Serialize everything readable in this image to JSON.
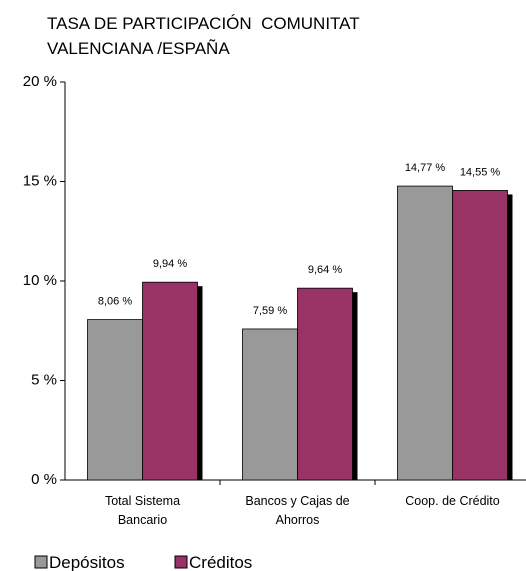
{
  "chart_data": {
    "type": "bar",
    "title": "TASA DE PARTICIPACIÓN  COMUNITAT VALENCIANA /ESPAÑA",
    "categories": [
      "Total Sistema Bancario",
      "Bancos y Cajas de Ahorros",
      "Coop. de Crédito"
    ],
    "series": [
      {
        "name": "Depósitos",
        "color": "#999999",
        "values": [
          8.06,
          7.59,
          14.77
        ],
        "value_labels": [
          "8,06 %",
          "7,59 %",
          "14,77 %"
        ]
      },
      {
        "name": "Créditos",
        "color": "#993366",
        "values": [
          9.94,
          9.64,
          14.55
        ],
        "value_labels": [
          "9,94 %",
          "9,64 %",
          "14,55 %"
        ]
      }
    ],
    "ylim": [
      0,
      20
    ],
    "yticks": [
      {
        "value": 0,
        "label": "0 %"
      },
      {
        "value": 5,
        "label": "5 %"
      },
      {
        "value": 10,
        "label": "10 %"
      },
      {
        "value": 15,
        "label": "15 %"
      },
      {
        "value": 20,
        "label": "20 %"
      }
    ],
    "grid": false,
    "legend": "bottom"
  }
}
